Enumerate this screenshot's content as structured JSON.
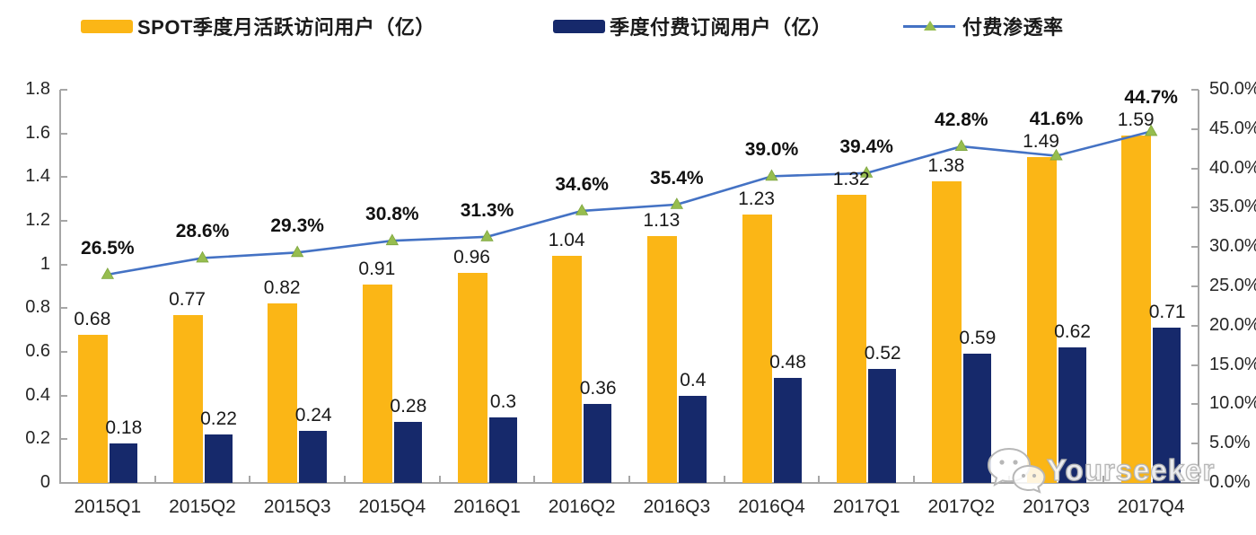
{
  "legend": {
    "items": [
      {
        "label": "SPOT季度月活跃访问用户（亿）",
        "swatch": "bar",
        "color": "#FBB616"
      },
      {
        "label": "季度付费订阅用户（亿）",
        "swatch": "bar",
        "color": "#16296B"
      },
      {
        "label": "付费渗透率",
        "swatch": "line-marker",
        "color": "#4472C4",
        "marker_color": "#96BD4F"
      }
    ]
  },
  "watermark": {
    "text": "Yourseeker",
    "icon": "wechat-icon"
  },
  "chart_data": {
    "type": "bar",
    "subtype": "grouped-bars-with-line",
    "title": "",
    "categories": [
      "2015Q1",
      "2015Q2",
      "2015Q3",
      "2015Q4",
      "2016Q1",
      "2016Q2",
      "2016Q3",
      "2016Q4",
      "2017Q1",
      "2017Q2",
      "2017Q3",
      "2017Q4"
    ],
    "series": [
      {
        "name": "SPOT季度月活跃访问用户（亿）",
        "kind": "bar",
        "axis": "left",
        "color": "#FBB616",
        "values": [
          0.68,
          0.77,
          0.82,
          0.91,
          0.96,
          1.04,
          1.13,
          1.23,
          1.32,
          1.38,
          1.49,
          1.59
        ],
        "labels": [
          "0.68",
          "0.77",
          "0.82",
          "0.91",
          "0.96",
          "1.04",
          "1.13",
          "1.23",
          "1.32",
          "1.38",
          "1.49",
          "1.59"
        ]
      },
      {
        "name": "季度付费订阅用户（亿）",
        "kind": "bar",
        "axis": "left",
        "color": "#16296B",
        "values": [
          0.18,
          0.22,
          0.24,
          0.28,
          0.3,
          0.36,
          0.4,
          0.48,
          0.52,
          0.59,
          0.62,
          0.71
        ],
        "labels": [
          "0.18",
          "0.22",
          "0.24",
          "0.28",
          "0.3",
          "0.36",
          "0.4",
          "0.48",
          "0.52",
          "0.59",
          "0.62",
          "0.71"
        ]
      },
      {
        "name": "付费渗透率",
        "kind": "line",
        "axis": "right",
        "color": "#4472C4",
        "marker": "triangle-up",
        "marker_color": "#96BD4F",
        "values": [
          26.5,
          28.6,
          29.3,
          30.8,
          31.3,
          34.6,
          35.4,
          39.0,
          39.4,
          42.8,
          41.6,
          44.7
        ],
        "labels": [
          "26.5%",
          "28.6%",
          "29.3%",
          "30.8%",
          "31.3%",
          "34.6%",
          "35.4%",
          "39.0%",
          "39.4%",
          "42.8%",
          "41.6%",
          "44.7%"
        ]
      }
    ],
    "left_axis": {
      "min": 0,
      "max": 1.8,
      "step": 0.2,
      "tick_labels": [
        "0",
        "0.2",
        "0.4",
        "0.6",
        "0.8",
        "1",
        "1.2",
        "1.4",
        "1.6",
        "1.8"
      ]
    },
    "right_axis": {
      "min": 0,
      "max": 50,
      "step": 5,
      "tick_labels": [
        "0.0%",
        "5.0%",
        "10.0%",
        "15.0%",
        "20.0%",
        "25.0%",
        "30.0%",
        "35.0%",
        "40.0%",
        "45.0%",
        "50.0%"
      ]
    },
    "grid": false,
    "legend_position": "top"
  }
}
